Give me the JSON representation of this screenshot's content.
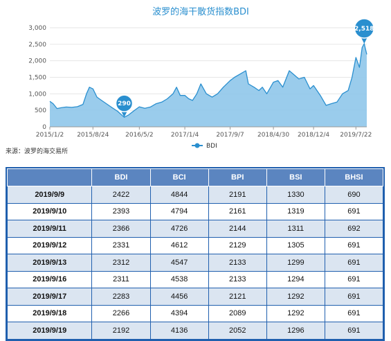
{
  "chart_data": {
    "type": "area",
    "title": "波罗的海干散货指数BDI",
    "legend": [
      "BDI"
    ],
    "legend_position": "bottom-center",
    "grid": true,
    "y_ticks": [
      "0",
      "500",
      "1,000",
      "1,500",
      "2,000",
      "2,500",
      "3,000"
    ],
    "ylim": [
      0,
      3000
    ],
    "x_ticks": [
      "2015/1/2",
      "2015/8/24",
      "2016/5/2",
      "2017/1/4",
      "2017/9/7",
      "2018/4/30",
      "2018/12/4",
      "2019/7/22"
    ],
    "series": [
      {
        "name": "BDI",
        "color": "#2a8fcf",
        "x": [
          "2015/1/2",
          "2015/1/20",
          "2015/2/10",
          "2015/3/5",
          "2015/4/1",
          "2015/5/1",
          "2015/6/1",
          "2015/7/1",
          "2015/7/20",
          "2015/8/5",
          "2015/8/24",
          "2015/9/15",
          "2015/10/10",
          "2015/11/5",
          "2015/12/1",
          "2016/1/5",
          "2016/2/10",
          "2016/3/5",
          "2016/4/1",
          "2016/5/2",
          "2016/6/1",
          "2016/7/1",
          "2016/8/1",
          "2016/9/1",
          "2016/10/1",
          "2016/11/1",
          "2016/11/20",
          "2016/12/10",
          "2017/1/4",
          "2017/1/25",
          "2017/2/15",
          "2017/3/10",
          "2017/4/1",
          "2017/5/1",
          "2017/6/1",
          "2017/7/1",
          "2017/8/1",
          "2017/9/7",
          "2017/10/1",
          "2017/11/1",
          "2017/12/1",
          "2017/12/15",
          "2018/1/15",
          "2018/2/10",
          "2018/3/1",
          "2018/3/25",
          "2018/4/30",
          "2018/5/25",
          "2018/6/20",
          "2018/7/25",
          "2018/8/15",
          "2018/9/15",
          "2018/10/15",
          "2018/11/15",
          "2018/12/4",
          "2019/1/10",
          "2019/2/10",
          "2019/3/10",
          "2019/4/10",
          "2019/5/10",
          "2019/6/10",
          "2019/7/1",
          "2019/7/22",
          "2019/8/10",
          "2019/8/25",
          "2019/9/5",
          "2019/9/19"
        ],
        "values": [
          771,
          700,
          554,
          580,
          600,
          590,
          610,
          680,
          1000,
          1200,
          1150,
          900,
          800,
          700,
          600,
          473,
          290,
          360,
          480,
          606,
          560,
          600,
          700,
          750,
          850,
          1000,
          1200,
          950,
          953,
          850,
          800,
          1000,
          1300,
          1000,
          900,
          1000,
          1200,
          1400,
          1500,
          1600,
          1700,
          1300,
          1200,
          1100,
          1200,
          1000,
          1350,
          1400,
          1200,
          1700,
          1600,
          1450,
          1500,
          1150,
          1250,
          950,
          650,
          700,
          750,
          1000,
          1100,
          1500,
          2100,
          1800,
          2400,
          2518,
          2192
        ]
      }
    ],
    "annotations": [
      {
        "label": "290",
        "x": "2016/2/10",
        "value": 290
      },
      {
        "label": "2,518",
        "x": "2019/9/5",
        "value": 2518
      }
    ]
  },
  "source": "来源：波罗的海交易所",
  "table": {
    "headers": [
      "",
      "BDI",
      "BCI",
      "BPI",
      "BSI",
      "BHSI"
    ],
    "rows": [
      [
        "2019/9/9",
        "2422",
        "4844",
        "2191",
        "1330",
        "690"
      ],
      [
        "2019/9/10",
        "2393",
        "4794",
        "2161",
        "1319",
        "691"
      ],
      [
        "2019/9/11",
        "2366",
        "4726",
        "2144",
        "1311",
        "692"
      ],
      [
        "2019/9/12",
        "2331",
        "4612",
        "2129",
        "1305",
        "691"
      ],
      [
        "2019/9/13",
        "2312",
        "4547",
        "2133",
        "1299",
        "691"
      ],
      [
        "2019/9/16",
        "2311",
        "4538",
        "2133",
        "1294",
        "691"
      ],
      [
        "2019/9/17",
        "2283",
        "4456",
        "2121",
        "1292",
        "691"
      ],
      [
        "2019/9/18",
        "2266",
        "4394",
        "2089",
        "1292",
        "691"
      ],
      [
        "2019/9/19",
        "2192",
        "4136",
        "2052",
        "1296",
        "691"
      ]
    ]
  }
}
